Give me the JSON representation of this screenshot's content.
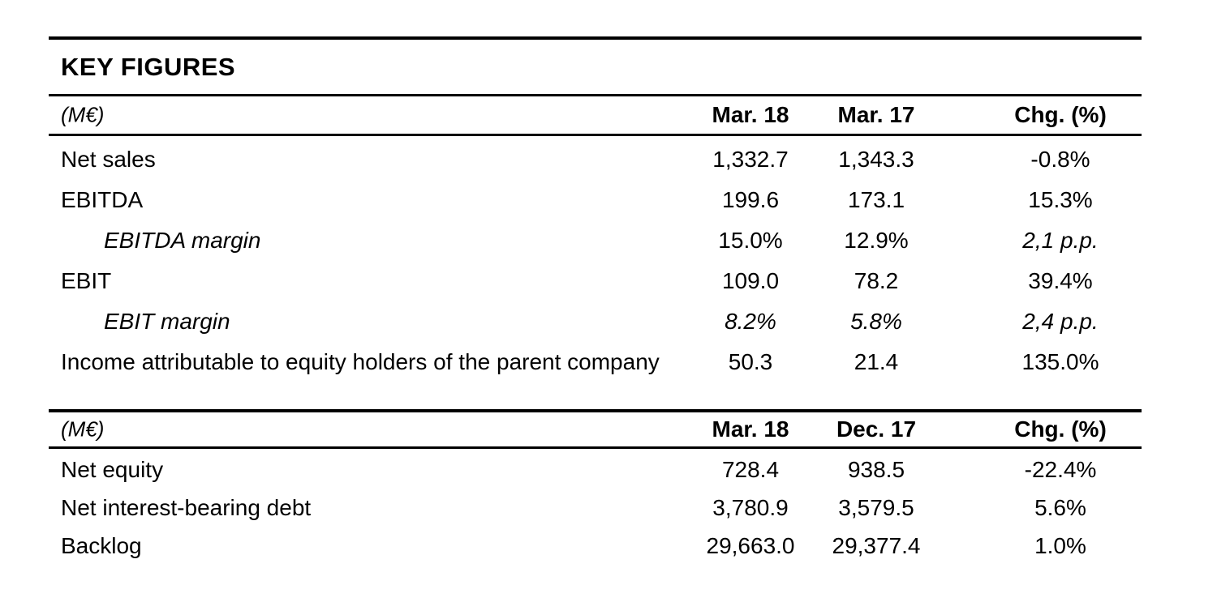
{
  "page": {
    "title": "KEY FIGURES"
  },
  "colors": {
    "text": "#000000",
    "rules": "#000000",
    "background": "#ffffff"
  },
  "table1": {
    "unit_label": "(M€)",
    "columns": [
      "Mar. 18",
      "Mar. 17",
      "Chg. (%)"
    ],
    "rows": [
      {
        "label": "Net sales",
        "values": [
          "1,332.7",
          "1,343.3",
          "-0.8%"
        ]
      },
      {
        "label": "EBITDA",
        "values": [
          "199.6",
          "173.1",
          "15.3%"
        ]
      },
      {
        "label": "EBITDA margin",
        "values": [
          "15.0%",
          "12.9%",
          "2,1 p.p."
        ]
      },
      {
        "label": "EBIT",
        "values": [
          "109.0",
          "78.2",
          "39.4%"
        ]
      },
      {
        "label": "EBIT margin",
        "values": [
          "8.2%",
          "5.8%",
          "2,4 p.p."
        ]
      },
      {
        "label": "Income attributable to equity holders of the parent company",
        "values": [
          "50.3",
          "21.4",
          "135.0%"
        ]
      }
    ]
  },
  "table2": {
    "unit_label": "(M€)",
    "columns": [
      "Mar. 18",
      "Dec. 17",
      "Chg. (%)"
    ],
    "rows": [
      {
        "label": "Net equity",
        "values": [
          "728.4",
          "938.5",
          "-22.4%"
        ]
      },
      {
        "label": "Net interest-bearing debt",
        "values": [
          "3,780.9",
          "3,579.5",
          "5.6%"
        ]
      },
      {
        "label": "Backlog",
        "values": [
          "29,663.0",
          "29,377.4",
          "1.0%"
        ]
      }
    ]
  }
}
